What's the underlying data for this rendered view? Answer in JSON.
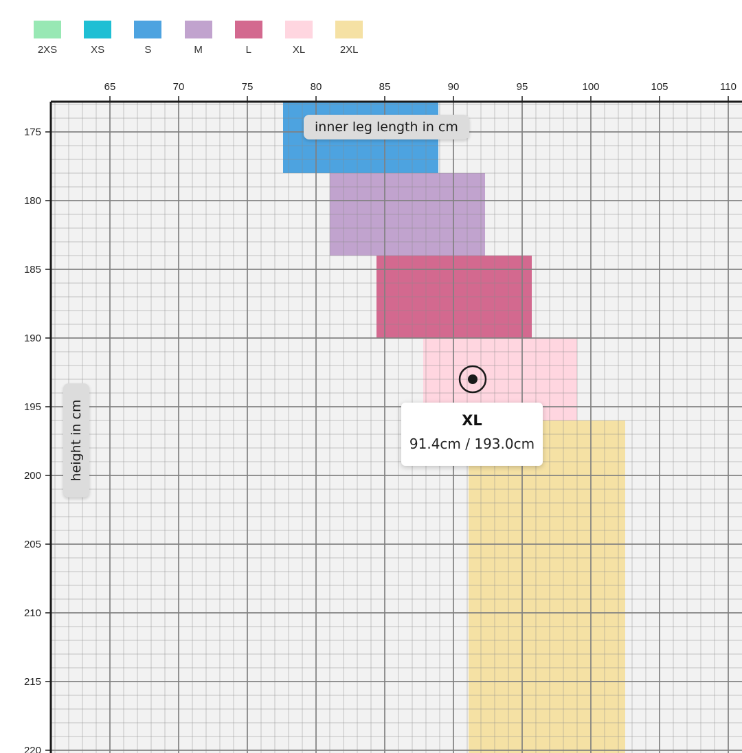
{
  "chart_data": {
    "type": "heatmap",
    "title": "",
    "xlabel": "inner leg length in cm",
    "ylabel": "height in cm",
    "xlim": [
      60.7,
      111
    ],
    "ylim": [
      172.2,
      220.2
    ],
    "x_ticks": [
      65,
      70,
      75,
      80,
      85,
      90,
      95,
      100,
      105,
      110
    ],
    "y_ticks": [
      175,
      180,
      185,
      190,
      195,
      200,
      205,
      210,
      215,
      220
    ],
    "grid": true,
    "legend_position": "top-left",
    "legend": [
      "2XS",
      "XS",
      "S",
      "M",
      "L",
      "XL",
      "2XL"
    ],
    "size_colors": {
      "2XS": "#98e8b4",
      "XS": "#1fbfd4",
      "S": "#4da3e0",
      "M": "#c1a3ce",
      "L": "#d3698f",
      "XL": "#ffd6e0",
      "2XL": "#f5e1a4"
    },
    "regions": [
      {
        "size": "S",
        "x_from": 77.6,
        "x_to": 88.9,
        "y_from": 172.2,
        "y_to": 178.0
      },
      {
        "size": "M",
        "x_from": 81.0,
        "x_to": 92.3,
        "y_from": 178.0,
        "y_to": 184.0
      },
      {
        "size": "L",
        "x_from": 84.4,
        "x_to": 95.7,
        "y_from": 184.0,
        "y_to": 190.0
      },
      {
        "size": "XL",
        "x_from": 87.8,
        "x_to": 99.0,
        "y_from": 190.0,
        "y_to": 196.0
      },
      {
        "size": "2XL",
        "x_from": 91.1,
        "x_to": 102.5,
        "y_from": 196.0,
        "y_to": 220.2
      }
    ],
    "highlight": {
      "size": "XL",
      "x": 91.4,
      "y": 193.0
    }
  },
  "tooltip": {
    "title": "XL",
    "value": "91.4cm / 193.0cm"
  }
}
